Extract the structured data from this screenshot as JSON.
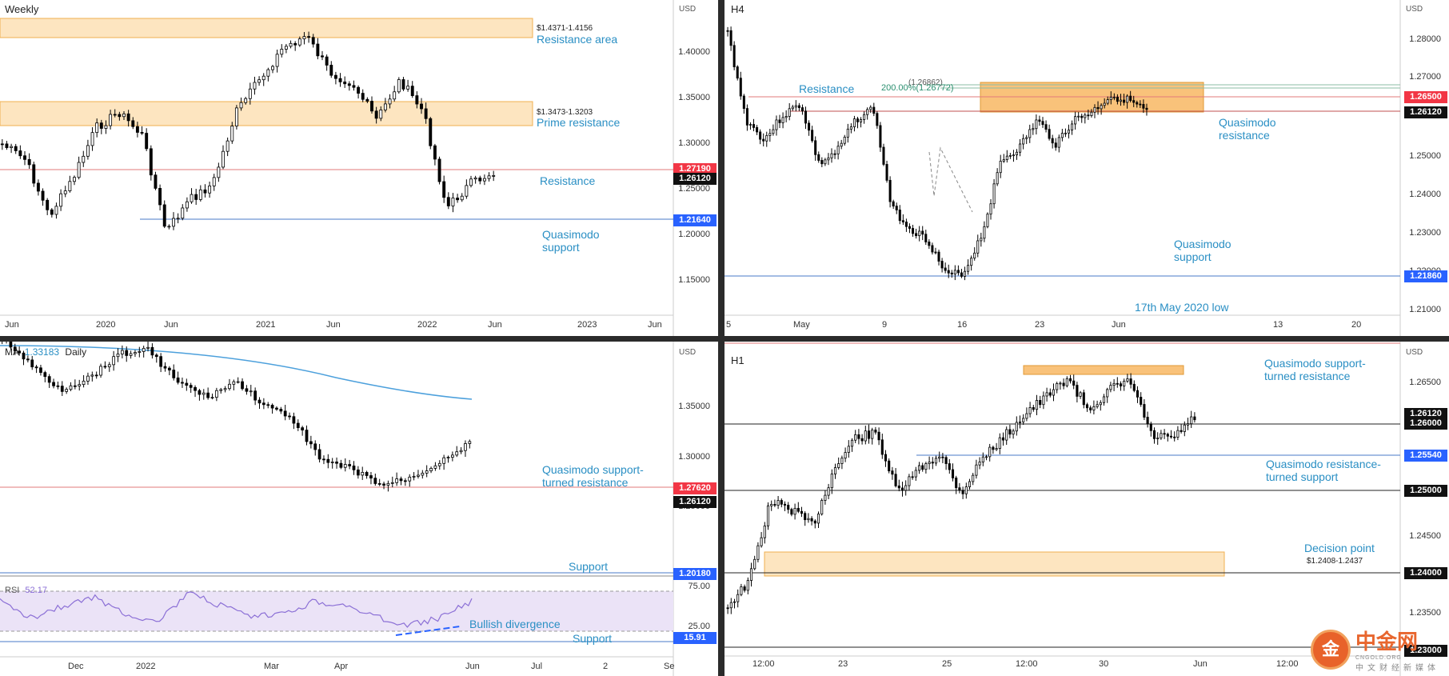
{
  "panels": {
    "weekly": {
      "timeframe": "Weekly",
      "currency": "USD",
      "price_ticks": [
        "1.40000",
        "1.35000",
        "1.30000",
        "1.25000",
        "1.20000",
        "1.15000"
      ],
      "x_ticks": [
        "Jun",
        "2020",
        "Jun",
        "2021",
        "Jun",
        "2022",
        "Jun",
        "2023",
        "Jun"
      ],
      "zones": [
        {
          "range": "$1.4371-1.4156",
          "name": "Resistance area"
        },
        {
          "range": "$1.3473-1.3203",
          "name": "Prime resistance"
        }
      ],
      "labels": {
        "resistance": "Resistance",
        "qm_support": "Quasimodo\nsupport"
      },
      "price_boxes": [
        {
          "value": "1.27190",
          "color": "#f23645"
        },
        {
          "value": "1.26120",
          "color": "#111111"
        },
        {
          "value": "1.21640",
          "color": "#2962ff"
        }
      ]
    },
    "h4": {
      "timeframe": "H4",
      "currency": "USD",
      "price_ticks": [
        "1.28000",
        "1.27000",
        "1.25000",
        "1.24000",
        "1.23000",
        "1.22000",
        "1.21000"
      ],
      "x_ticks": [
        "5",
        "May",
        "9",
        "16",
        "23",
        "Jun",
        "13",
        "20"
      ],
      "fib_label": "200.00%(1.26772)",
      "fib_label2": "(1.26862)",
      "labels": {
        "resistance": "Resistance",
        "qm_resistance": "Quasimodo\nresistance",
        "qm_support": "Quasimodo\nsupport",
        "low": "17th May 2020 low"
      },
      "price_boxes": [
        {
          "value": "1.26500",
          "color": "#f23645"
        },
        {
          "value": "1.26120",
          "color": "#111111"
        },
        {
          "value": "1.21860",
          "color": "#2962ff"
        }
      ]
    },
    "daily": {
      "timeframe": "Daily",
      "ma_label": "MA",
      "ma_value": "1.33183",
      "currency": "USD",
      "price_ticks": [
        "1.35000",
        "1.30000",
        "1.25000"
      ],
      "x_ticks": [
        "Dec",
        "2022",
        "Mar",
        "Apr",
        "Jun",
        "Jul",
        "2",
        "Se"
      ],
      "rsi_label": "RSI",
      "rsi_value": "52.17",
      "rsi_ticks": [
        "75.00",
        "25.00"
      ],
      "labels": {
        "qm_str": "Quasimodo support-\nturned resistance",
        "support": "Support",
        "bullish": "Bullish divergence",
        "rsi_support": "Support"
      },
      "price_boxes": [
        {
          "value": "1.27620",
          "color": "#f23645"
        },
        {
          "value": "1.26120",
          "color": "#111111"
        },
        {
          "value": "1.20180",
          "color": "#2962ff"
        },
        {
          "value": "15.91",
          "color": "#2962ff"
        }
      ]
    },
    "h1": {
      "timeframe": "H1",
      "currency": "USD",
      "price_ticks": [
        "1.26500",
        "1.24500",
        "1.23500"
      ],
      "x_ticks": [
        "12:00",
        "23",
        "25",
        "12:00",
        "30",
        "Jun",
        "12:00"
      ],
      "labels": {
        "qm_str": "Quasimodo support-\nturned resistance",
        "qm_rts": "Quasimodo resistance-\nturned support",
        "decision": "Decision point",
        "decision_range": "$1.2408-1.2437"
      },
      "price_boxes": [
        {
          "value": "1.26120",
          "color": "#111111"
        },
        {
          "value": "1.26000",
          "color": "#111111"
        },
        {
          "value": "1.25540",
          "color": "#2962ff"
        },
        {
          "value": "1.25000",
          "color": "#111111"
        },
        {
          "value": "1.24000",
          "color": "#111111"
        },
        {
          "value": "1.23000",
          "color": "#111111"
        }
      ]
    }
  },
  "watermark": {
    "logo": "金",
    "name": "中金网",
    "sub": "中文财经新媒体",
    "sub_en": "CNGOLD.ORG"
  }
}
